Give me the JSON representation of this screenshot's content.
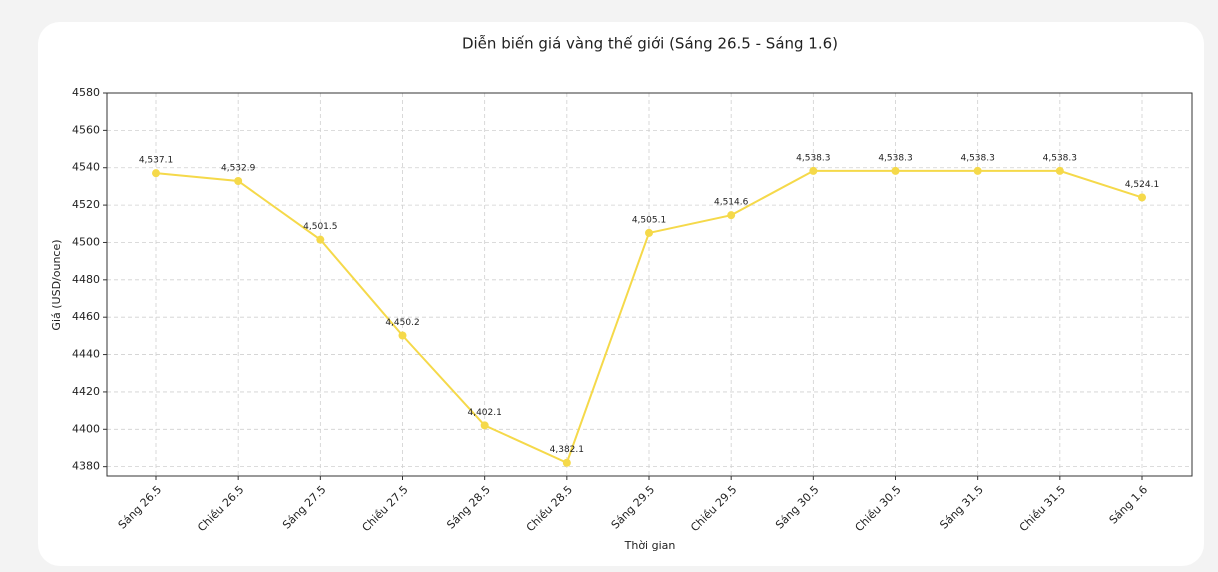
{
  "chart_data": {
    "type": "line",
    "title": "Diễn biến giá vàng thế giới (Sáng 26.5 - Sáng 1.6)",
    "x_label": "Thời gian",
    "y_label": "Giá (USD/ounce)",
    "categories": [
      "Sáng 26.5",
      "Chiều 26.5",
      "Sáng 27.5",
      "Chiều 27.5",
      "Sáng 28.5",
      "Chiều 28.5",
      "Sáng 29.5",
      "Chiều 29.5",
      "Sáng 30.5",
      "Chiều 30.5",
      "Sáng 31.5",
      "Chiều 31.5",
      "Sáng 1.6"
    ],
    "values": [
      4537.1,
      4532.9,
      4501.5,
      4450.2,
      4402.1,
      4382.1,
      4505.1,
      4514.6,
      4538.3,
      4538.3,
      4538.3,
      4538.3,
      4524.1
    ],
    "value_labels": [
      "4,537.1",
      "4,532.9",
      "4,501.5",
      "4,450.2",
      "4,402.1",
      "4,382.1",
      "4,505.1",
      "4,514.6",
      "4,538.3",
      "4,538.3",
      "4,538.3",
      "4,538.3",
      "4,524.1"
    ],
    "color": "#f5d94a",
    "ylim": [
      4375,
      4580
    ],
    "yticks": [
      4380,
      4400,
      4420,
      4440,
      4460,
      4480,
      4500,
      4520,
      4540,
      4560,
      4580
    ],
    "grid": true
  }
}
